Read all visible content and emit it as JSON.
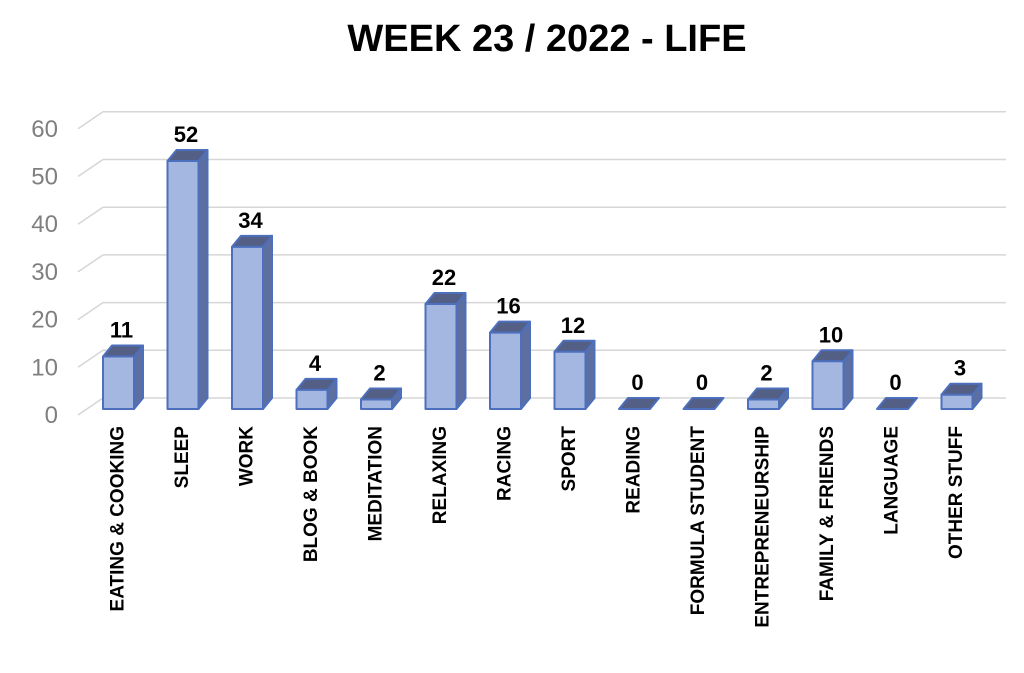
{
  "title": "WEEK 23 / 2022 - LIFE",
  "chart_data": {
    "type": "bar",
    "style": "3d-cuboid",
    "title": "WEEK 23 / 2022 - LIFE",
    "categories": [
      "EATING & COOKING",
      "SLEEP",
      "WORK",
      "BLOG & BOOK",
      "MEDITATION",
      "RELAXING",
      "RACING",
      "SPORT",
      "READING",
      "FORMULA STUDENT",
      "ENTREPRENEURSHIP",
      "FAMILY & FRIENDS",
      "LANGUAGE",
      "OTHER STUFF"
    ],
    "values": [
      11,
      52,
      34,
      4,
      2,
      22,
      16,
      12,
      0,
      0,
      2,
      10,
      0,
      3
    ],
    "data_labels_shown": true,
    "xlabel": "",
    "ylabel": "",
    "y_ticks": [
      0,
      10,
      20,
      30,
      40,
      50,
      60
    ],
    "ylim": [
      0,
      60
    ],
    "grid": true,
    "legend_position": "none",
    "category_label_rotation_degrees": 90
  },
  "colors": {
    "background": "#FFFFFF",
    "title_text": "#000000",
    "bar_front": "#A4B7E1",
    "bar_side": "#5D6FA0",
    "bar_top": "#535F85",
    "bar_border": "#4C6FBE",
    "gridline": "#D6D6D6",
    "y_tick_text": "#7F7F7F",
    "value_label_text": "#000000",
    "category_label_text": "#000000"
  }
}
